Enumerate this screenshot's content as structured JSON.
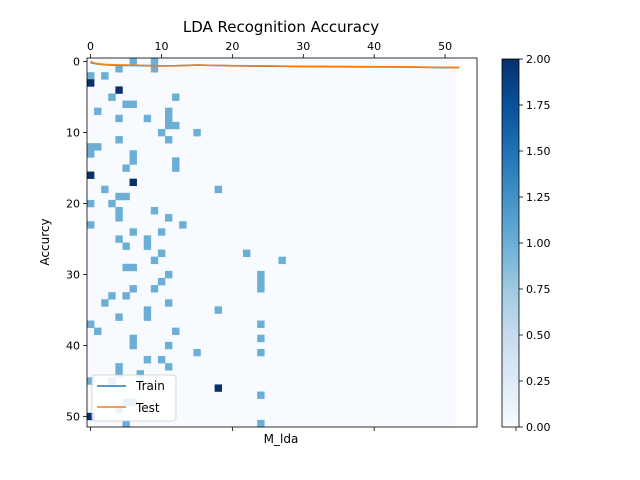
{
  "chart_data": {
    "type": "heatmap",
    "title": "LDA Recognition Accuracy",
    "xlabel": "M_lda",
    "ylabel": "Accurcy",
    "x_top_ticks": [
      0,
      10,
      20,
      30,
      40,
      50
    ],
    "x_bottom_ticks": [
      "",
      "",
      "",
      ""
    ],
    "y_ticks": [
      0,
      10,
      20,
      30,
      40,
      50
    ],
    "colorbar": {
      "ticks": [
        "0.00",
        "0.25",
        "0.50",
        "0.75",
        "1.00",
        "1.25",
        "1.50",
        "1.75",
        "2.00"
      ],
      "range": [
        0,
        2
      ],
      "colormap": "Blues",
      "colors": [
        "#f7fbff",
        "#deebf7",
        "#c6dbef",
        "#9ecae1",
        "#6baed6",
        "#4292c6",
        "#2171b5",
        "#08519c",
        "#08306b"
      ]
    },
    "grid": {
      "cols": 52,
      "rows": 52
    },
    "cells": [
      [
        6,
        0,
        1
      ],
      [
        9,
        0,
        1
      ],
      [
        9,
        1,
        1
      ],
      [
        4,
        1,
        1
      ],
      [
        0,
        2,
        1
      ],
      [
        2,
        2,
        1
      ],
      [
        0,
        3,
        2
      ],
      [
        4,
        4,
        2
      ],
      [
        3,
        5,
        1
      ],
      [
        12,
        5,
        1
      ],
      [
        5,
        6,
        1
      ],
      [
        6,
        6,
        1
      ],
      [
        1,
        7,
        1
      ],
      [
        11,
        7,
        1
      ],
      [
        4,
        8,
        1
      ],
      [
        8,
        8,
        1
      ],
      [
        11,
        8,
        1
      ],
      [
        11,
        9,
        1
      ],
      [
        12,
        9,
        1
      ],
      [
        10,
        10,
        1
      ],
      [
        15,
        10,
        1
      ],
      [
        4,
        11,
        1
      ],
      [
        11,
        11,
        1
      ],
      [
        0,
        12,
        1
      ],
      [
        1,
        12,
        1
      ],
      [
        0,
        13,
        1
      ],
      [
        6,
        13,
        1
      ],
      [
        6,
        14,
        1
      ],
      [
        12,
        14,
        1
      ],
      [
        5,
        15,
        1
      ],
      [
        12,
        15,
        1
      ],
      [
        0,
        16,
        2
      ],
      [
        6,
        17,
        2
      ],
      [
        2,
        18,
        1
      ],
      [
        18,
        18,
        1
      ],
      [
        4,
        19,
        1
      ],
      [
        5,
        19,
        1
      ],
      [
        0,
        20,
        1
      ],
      [
        3,
        20,
        1
      ],
      [
        4,
        21,
        1
      ],
      [
        9,
        21,
        1
      ],
      [
        4,
        22,
        1
      ],
      [
        11,
        22,
        1
      ],
      [
        0,
        23,
        1
      ],
      [
        13,
        23,
        1
      ],
      [
        6,
        24,
        1
      ],
      [
        10,
        24,
        1
      ],
      [
        4,
        25,
        1
      ],
      [
        8,
        25,
        1
      ],
      [
        5,
        26,
        1
      ],
      [
        8,
        26,
        1
      ],
      [
        22,
        27,
        1
      ],
      [
        10,
        27,
        1
      ],
      [
        9,
        28,
        1
      ],
      [
        27,
        28,
        1
      ],
      [
        5,
        29,
        1
      ],
      [
        6,
        29,
        1
      ],
      [
        24,
        30,
        1
      ],
      [
        11,
        30,
        1
      ],
      [
        24,
        31,
        1
      ],
      [
        10,
        31,
        1
      ],
      [
        24,
        32,
        1
      ],
      [
        6,
        32,
        1
      ],
      [
        9,
        32,
        1
      ],
      [
        3,
        33,
        1
      ],
      [
        5,
        33,
        1
      ],
      [
        2,
        34,
        1
      ],
      [
        11,
        34,
        1
      ],
      [
        18,
        35,
        1
      ],
      [
        8,
        35,
        1
      ],
      [
        4,
        36,
        1
      ],
      [
        8,
        36,
        1
      ],
      [
        0,
        37,
        1
      ],
      [
        24,
        37,
        1
      ],
      [
        1,
        38,
        1
      ],
      [
        12,
        38,
        1
      ],
      [
        6,
        39,
        1
      ],
      [
        24,
        39,
        1
      ],
      [
        6,
        40,
        1
      ],
      [
        11,
        40,
        1
      ],
      [
        15,
        41,
        1
      ],
      [
        24,
        41,
        1
      ],
      [
        8,
        42,
        1
      ],
      [
        10,
        42,
        1
      ],
      [
        4,
        43,
        1
      ],
      [
        11,
        43,
        1
      ],
      [
        4,
        44,
        1
      ],
      [
        7,
        44,
        1
      ],
      [
        0,
        45,
        1
      ],
      [
        3,
        45,
        1
      ],
      [
        18,
        46,
        2
      ],
      [
        24,
        47,
        1
      ],
      [
        5,
        48,
        1
      ],
      [
        6,
        48,
        1
      ],
      [
        4,
        49,
        1
      ],
      [
        0,
        50,
        2
      ],
      [
        5,
        51,
        1
      ],
      [
        24,
        51,
        1
      ]
    ],
    "series": [
      {
        "name": "Train",
        "color": "#1f77b4",
        "x": [
          0,
          0.5,
          1,
          2,
          3,
          4,
          5,
          6,
          8,
          10,
          12,
          15,
          20,
          25,
          30,
          35,
          40,
          45,
          50,
          52
        ],
        "y": [
          0.1,
          0.25,
          0.35,
          0.45,
          0.5,
          0.52,
          0.55,
          0.55,
          0.58,
          0.62,
          0.6,
          0.5,
          0.6,
          0.65,
          0.7,
          0.72,
          0.75,
          0.78,
          0.85,
          0.85
        ]
      },
      {
        "name": "Test",
        "color": "#ff7f0e",
        "x": [
          0,
          0.5,
          1,
          2,
          3,
          4,
          5,
          6,
          8,
          10,
          12,
          15,
          20,
          25,
          30,
          35,
          40,
          45,
          50,
          52
        ],
        "y": [
          0.0,
          0.2,
          0.3,
          0.4,
          0.45,
          0.48,
          0.5,
          0.52,
          0.56,
          0.6,
          0.58,
          0.48,
          0.58,
          0.62,
          0.68,
          0.7,
          0.73,
          0.76,
          0.83,
          0.83
        ]
      }
    ],
    "legend": {
      "placement": "lower-left",
      "entries": [
        "Train",
        "Test"
      ]
    },
    "xlim": [
      -0.5,
      54.5
    ],
    "ylim": [
      51.5,
      -0.5
    ]
  }
}
